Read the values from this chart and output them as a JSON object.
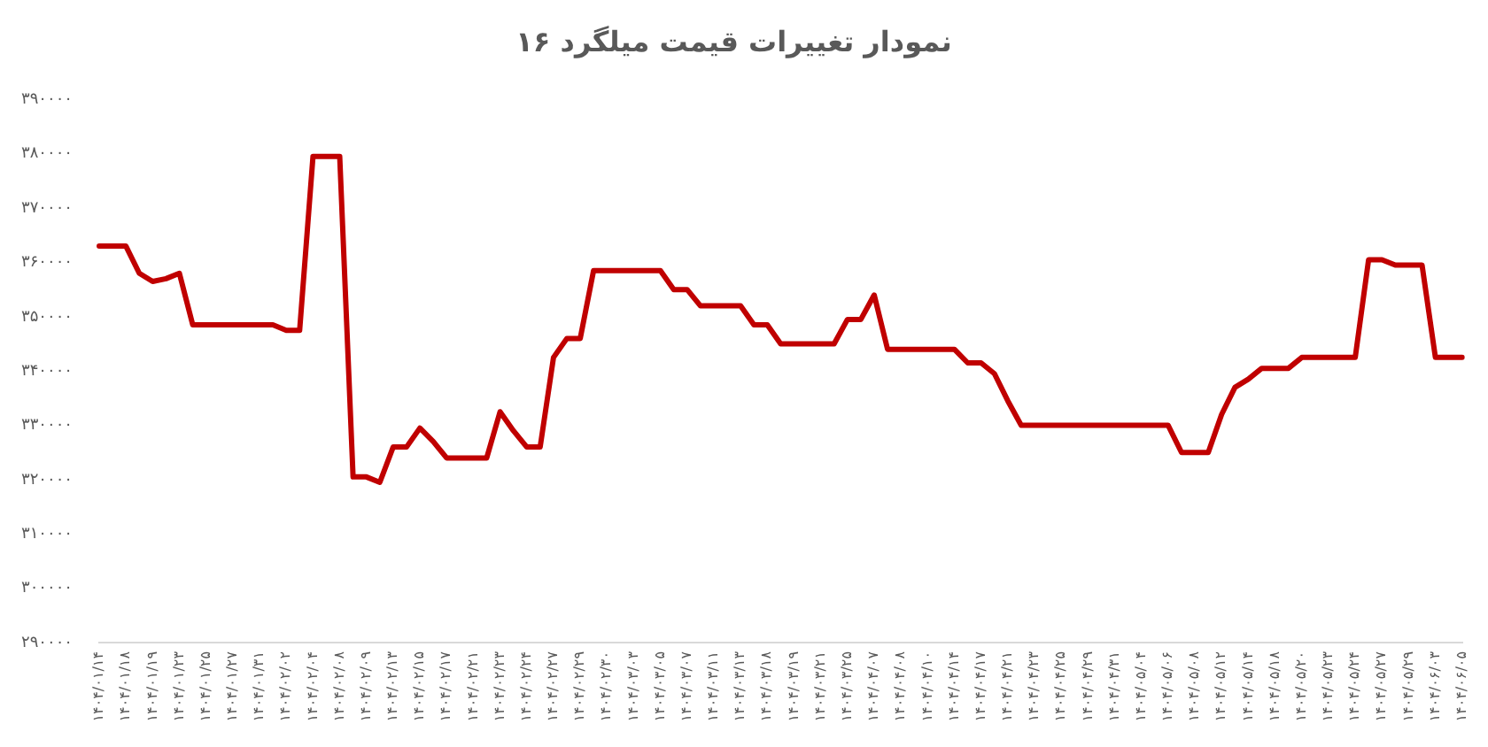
{
  "chart_data": {
    "type": "line",
    "title": "نمودار تغییرات قیمت میلگرد ۱۶",
    "categories": [
      "۱۴۰۴/۰۱/۱۴",
      null,
      "۱۴۰۴/۰۱/۱۸",
      null,
      "۱۴۰۴/۰۱/۱۹",
      null,
      "۱۴۰۴/۰۱/۲۳",
      null,
      "۱۴۰۴/۰۱/۲۵",
      null,
      "۱۴۰۴/۰۱/۲۷",
      null,
      "۱۴۰۴/۰۱/۳۱",
      null,
      "۱۴۰۴/۰۲/۰۲",
      null,
      "۱۴۰۴/۰۲/۰۴",
      null,
      "۱۴۰۴/۰۲/۰۸",
      null,
      "۱۴۰۴/۰۲/۰۹",
      null,
      "۱۴۰۴/۰۲/۱۳",
      null,
      "۱۴۰۴/۰۲/۱۵",
      null,
      "۱۴۰۴/۰۲/۱۷",
      null,
      "۱۴۰۴/۰۲/۲۱",
      null,
      "۱۴۰۴/۰۲/۲۳",
      null,
      "۱۴۰۴/۰۲/۲۴",
      null,
      "۱۴۰۴/۰۲/۲۷",
      null,
      "۱۴۰۴/۰۲/۲۹",
      null,
      "۱۴۰۴/۰۲/۳۰",
      null,
      "۱۴۰۴/۰۳/۰۳",
      null,
      "۱۴۰۴/۰۳/۰۵",
      null,
      "۱۴۰۴/۰۳/۰۷",
      null,
      "۱۴۰۴/۰۳/۱۱",
      null,
      "۱۴۰۴/۰۳/۱۳",
      null,
      "۱۴۰۴/۰۳/۱۸",
      null,
      "۱۴۰۴/۰۳/۱۹",
      null,
      "۱۴۰۴/۰۳/۲۱",
      null,
      "۱۴۰۴/۰۳/۲۵",
      null,
      "۱۴۰۴/۰۴/۰۷",
      null,
      "۱۴۰۴/۰۴/۰۸",
      null,
      "۱۴۰۴/۰۴/۱۰",
      null,
      "۱۴۰۴/۰۴/۱۴",
      null,
      "۱۴۰۴/۰۴/۱۷",
      null,
      "۱۴۰۴/۰۴/۲۱",
      null,
      "۱۴۰۴/۰۴/۲۳",
      null,
      "۱۴۰۴/۰۴/۲۵",
      null,
      "۱۴۰۴/۰۴/۲۹",
      null,
      "۱۴۰۴/۰۴/۳۱",
      null,
      "۱۴۰۴/۰۵/۰۴",
      null,
      "۱۴۰۴/۰۵/۰۶",
      null,
      "۱۴۰۴/۰۵/۰۸",
      null,
      "۱۴۰۴/۰۵/۱۲",
      null,
      "۱۴۰۴/۰۵/۱۴",
      null,
      "۱۴۰۴/۰۵/۱۸",
      null,
      "۱۴۰۴/۰۵/۲۰",
      null,
      "۱۴۰۴/۰۵/۲۳",
      null,
      "۱۴۰۴/۰۵/۲۴",
      null,
      "۱۴۰۴/۰۵/۲۷",
      null,
      "۱۴۰۴/۰۵/۲۹",
      null,
      "۱۴۰۴/۰۶/۰۳",
      null,
      "۱۴۰۴/۰۶/۰۵"
    ],
    "values": [
      363000,
      363000,
      363000,
      358000,
      356500,
      357000,
      358000,
      348500,
      348500,
      348500,
      348500,
      348500,
      348500,
      348500,
      347500,
      347500,
      379500,
      379500,
      379500,
      320500,
      320500,
      319500,
      326000,
      326000,
      329500,
      327000,
      324000,
      324000,
      324000,
      324000,
      332500,
      329000,
      326000,
      326000,
      342500,
      346000,
      346000,
      358500,
      358500,
      358500,
      358500,
      358500,
      358500,
      355000,
      355000,
      352000,
      352000,
      352000,
      352000,
      348500,
      348500,
      345000,
      345000,
      345000,
      345000,
      345000,
      349500,
      349500,
      354000,
      344000,
      344000,
      344000,
      344000,
      344000,
      344000,
      341500,
      341500,
      339500,
      334500,
      330000,
      330000,
      330000,
      330000,
      330000,
      330000,
      330000,
      330000,
      330000,
      330000,
      330000,
      330000,
      325000,
      325000,
      325000,
      332000,
      337000,
      338500,
      340500,
      340500,
      340500,
      342500,
      342500,
      342500,
      342500,
      342500,
      360500,
      360500,
      359500,
      359500,
      359500,
      342500,
      342500,
      342500
    ],
    "color": "#c00000",
    "ylim": [
      290000,
      390000
    ],
    "yticks": [
      {
        "value": 290000,
        "label": "۲۹۰۰۰۰"
      },
      {
        "value": 300000,
        "label": "۳۰۰۰۰۰"
      },
      {
        "value": 310000,
        "label": "۳۱۰۰۰۰"
      },
      {
        "value": 320000,
        "label": "۳۲۰۰۰۰"
      },
      {
        "value": 330000,
        "label": "۳۳۰۰۰۰"
      },
      {
        "value": 340000,
        "label": "۳۴۰۰۰۰"
      },
      {
        "value": 350000,
        "label": "۳۵۰۰۰۰"
      },
      {
        "value": 360000,
        "label": "۳۶۰۰۰۰"
      },
      {
        "value": 370000,
        "label": "۳۷۰۰۰۰"
      },
      {
        "value": 380000,
        "label": "۳۸۰۰۰۰"
      },
      {
        "value": 390000,
        "label": "۳۹۰۰۰۰"
      }
    ],
    "grid": false,
    "legend": false,
    "marker": "none"
  }
}
